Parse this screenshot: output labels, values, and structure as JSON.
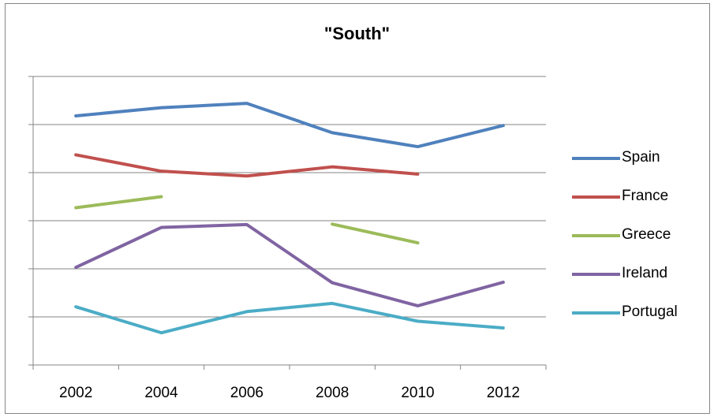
{
  "chart_data": {
    "type": "line",
    "title": "\"South\"",
    "categories": [
      "2002",
      "2004",
      "2006",
      "2008",
      "2010",
      "2012"
    ],
    "ylim": [
      0,
      6
    ],
    "y_tick_labels_shown": false,
    "grid": "horizontal",
    "legend_position": "right",
    "series": [
      {
        "name": "Spain",
        "color": "#4F81BD",
        "values": [
          5.18,
          5.35,
          5.44,
          4.83,
          4.54,
          4.98
        ]
      },
      {
        "name": "France",
        "color": "#C0504D",
        "values": [
          4.37,
          4.03,
          3.93,
          4.12,
          3.97,
          null
        ]
      },
      {
        "name": "Greece",
        "color": "#9BBB59",
        "values": [
          3.27,
          3.5,
          null,
          2.93,
          2.54,
          null
        ]
      },
      {
        "name": "Ireland",
        "color": "#8064A2",
        "values": [
          2.03,
          2.86,
          2.92,
          1.71,
          1.23,
          1.72
        ]
      },
      {
        "name": "Portugal",
        "color": "#4BACC6",
        "values": [
          1.21,
          0.67,
          1.11,
          1.28,
          0.91,
          0.77
        ]
      }
    ]
  }
}
